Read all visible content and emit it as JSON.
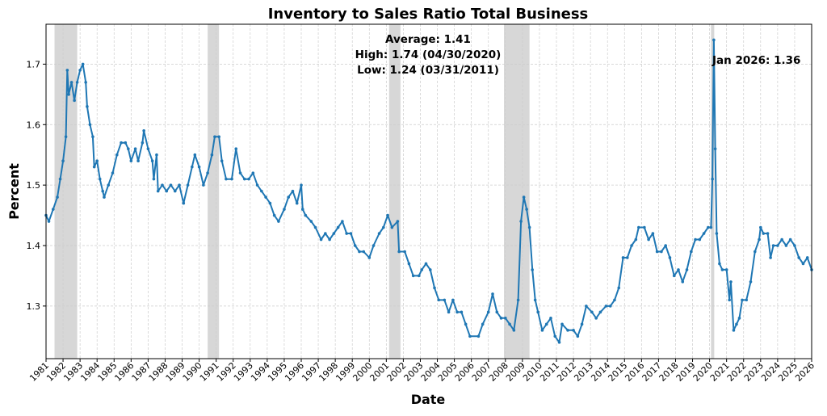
{
  "chart_data": {
    "type": "line",
    "title": "Inventory to Sales Ratio Total Business",
    "xlabel": "Date",
    "ylabel": "Percent",
    "xlim": [
      "1981-01",
      "2026-01"
    ],
    "ylim": [
      1.213,
      1.766
    ],
    "x_ticks": [
      "1981",
      "1982",
      "1983",
      "1984",
      "1985",
      "1986",
      "1987",
      "1988",
      "1989",
      "1990",
      "1991",
      "1992",
      "1993",
      "1994",
      "1995",
      "1996",
      "1997",
      "1998",
      "1999",
      "2000",
      "2001",
      "2002",
      "2003",
      "2004",
      "2005",
      "2006",
      "2007",
      "2008",
      "2009",
      "2010",
      "2011",
      "2012",
      "2013",
      "2014",
      "2015",
      "2016",
      "2017",
      "2018",
      "2019",
      "2020",
      "2021",
      "2022",
      "2023",
      "2024",
      "2025",
      "2026"
    ],
    "y_ticks": [
      "1.3",
      "1.4",
      "1.5",
      "1.6",
      "1.7"
    ],
    "grid": true,
    "line_color": "#1f77b4",
    "recession_color": "#b0b0b0",
    "recessions": [
      [
        "1981-07",
        "1982-11"
      ],
      [
        "1990-07",
        "1991-03"
      ],
      [
        "2001-03",
        "2001-11"
      ],
      [
        "2007-12",
        "2009-06"
      ],
      [
        "2020-02",
        "2020-04"
      ]
    ],
    "annotations": {
      "average": "Average: 1.41",
      "high": "High: 1.74 (04/30/2020)",
      "low": "Low: 1.24 (03/31/2011)",
      "latest": "Jan 2026: 1.36"
    },
    "series": [
      {
        "x": [
          "1981-01",
          "1981-03",
          "1981-06",
          "1981-09",
          "1981-11",
          "1982-01",
          "1982-03",
          "1982-04",
          "1982-05",
          "1982-07",
          "1982-09",
          "1982-11",
          "1983-01",
          "1983-03",
          "1983-05",
          "1983-06",
          "1983-08",
          "1983-10",
          "1983-11",
          "1984-01",
          "1984-03",
          "1984-05",
          "1984-06",
          "1984-09",
          "1984-12",
          "1985-03",
          "1985-06",
          "1985-09",
          "1985-11",
          "1986-01",
          "1986-04",
          "1986-06",
          "1986-09",
          "1986-10",
          "1987-01",
          "1987-04",
          "1987-05",
          "1987-07",
          "1987-08",
          "1987-11",
          "1988-02",
          "1988-05",
          "1988-08",
          "1988-11",
          "1989-02",
          "1989-05",
          "1989-08",
          "1989-10",
          "1990-01",
          "1990-04",
          "1990-07",
          "1990-10",
          "1990-12",
          "1991-03",
          "1991-05",
          "1991-08",
          "1991-12",
          "1992-03",
          "1992-06",
          "1992-09",
          "1992-12",
          "1993-03",
          "1993-06",
          "1993-09",
          "1993-12",
          "1994-03",
          "1994-06",
          "1994-09",
          "1995-01",
          "1995-04",
          "1995-07",
          "1995-10",
          "1996-01",
          "1996-02",
          "1996-04",
          "1996-08",
          "1996-11",
          "1997-03",
          "1997-06",
          "1997-09",
          "1997-12",
          "1998-03",
          "1998-06",
          "1998-09",
          "1998-12",
          "1999-03",
          "1999-06",
          "1999-09",
          "2000-01",
          "2000-04",
          "2000-08",
          "2000-11",
          "2001-02",
          "2001-05",
          "2001-09",
          "2001-10",
          "2002-02",
          "2002-05",
          "2002-08",
          "2002-12",
          "2003-02",
          "2003-05",
          "2003-08",
          "2003-11",
          "2004-02",
          "2004-06",
          "2004-09",
          "2004-12",
          "2005-03",
          "2005-06",
          "2005-09",
          "2005-12",
          "2006-06",
          "2006-09",
          "2007-01",
          "2007-04",
          "2007-07",
          "2007-10",
          "2008-01",
          "2008-04",
          "2008-07",
          "2008-10",
          "2008-12",
          "2009-02",
          "2009-04",
          "2009-06",
          "2009-08",
          "2009-10",
          "2009-12",
          "2010-03",
          "2010-06",
          "2010-09",
          "2010-12",
          "2011-03",
          "2011-05",
          "2011-09",
          "2012-01",
          "2012-04",
          "2012-07",
          "2012-10",
          "2013-02",
          "2013-05",
          "2013-08",
          "2013-12",
          "2014-03",
          "2014-06",
          "2014-09",
          "2014-12",
          "2015-03",
          "2015-06",
          "2015-09",
          "2015-11",
          "2016-03",
          "2016-06",
          "2016-09",
          "2016-12",
          "2017-03",
          "2017-06",
          "2017-09",
          "2017-12",
          "2018-03",
          "2018-06",
          "2018-09",
          "2018-12",
          "2019-03",
          "2019-06",
          "2019-09",
          "2019-12",
          "2020-02",
          "2020-03",
          "2020-04",
          "2020-05",
          "2020-06",
          "2020-08",
          "2020-10",
          "2021-01",
          "2021-03",
          "2021-04",
          "2021-06",
          "2021-08",
          "2021-10",
          "2021-12",
          "2022-03",
          "2022-06",
          "2022-09",
          "2022-12",
          "2023-01",
          "2023-03",
          "2023-06",
          "2023-08",
          "2023-10",
          "2024-01",
          "2024-04",
          "2024-07",
          "2024-10",
          "2025-01",
          "2025-04",
          "2025-07",
          "2025-10",
          "2026-01"
        ],
        "y": [
          1.45,
          1.44,
          1.46,
          1.48,
          1.51,
          1.54,
          1.58,
          1.69,
          1.65,
          1.67,
          1.64,
          1.67,
          1.69,
          1.7,
          1.67,
          1.63,
          1.6,
          1.58,
          1.53,
          1.54,
          1.51,
          1.49,
          1.48,
          1.5,
          1.52,
          1.55,
          1.57,
          1.57,
          1.56,
          1.54,
          1.56,
          1.54,
          1.57,
          1.59,
          1.56,
          1.54,
          1.51,
          1.55,
          1.49,
          1.5,
          1.49,
          1.5,
          1.49,
          1.5,
          1.47,
          1.5,
          1.53,
          1.55,
          1.53,
          1.5,
          1.52,
          1.55,
          1.58,
          1.58,
          1.54,
          1.51,
          1.51,
          1.56,
          1.52,
          1.51,
          1.51,
          1.52,
          1.5,
          1.49,
          1.48,
          1.47,
          1.45,
          1.44,
          1.46,
          1.48,
          1.49,
          1.47,
          1.5,
          1.46,
          1.45,
          1.44,
          1.43,
          1.41,
          1.42,
          1.41,
          1.42,
          1.43,
          1.44,
          1.42,
          1.42,
          1.4,
          1.39,
          1.39,
          1.38,
          1.4,
          1.42,
          1.43,
          1.45,
          1.43,
          1.44,
          1.39,
          1.39,
          1.37,
          1.35,
          1.35,
          1.36,
          1.37,
          1.36,
          1.33,
          1.31,
          1.31,
          1.29,
          1.31,
          1.29,
          1.29,
          1.27,
          1.25,
          1.25,
          1.27,
          1.29,
          1.32,
          1.29,
          1.28,
          1.28,
          1.27,
          1.26,
          1.31,
          1.44,
          1.48,
          1.46,
          1.43,
          1.36,
          1.31,
          1.29,
          1.26,
          1.27,
          1.28,
          1.25,
          1.24,
          1.27,
          1.26,
          1.26,
          1.25,
          1.27,
          1.3,
          1.29,
          1.28,
          1.29,
          1.3,
          1.3,
          1.31,
          1.33,
          1.38,
          1.38,
          1.4,
          1.41,
          1.43,
          1.43,
          1.41,
          1.42,
          1.39,
          1.39,
          1.4,
          1.38,
          1.35,
          1.36,
          1.34,
          1.36,
          1.39,
          1.41,
          1.41,
          1.42,
          1.43,
          1.43,
          1.51,
          1.74,
          1.56,
          1.42,
          1.37,
          1.36,
          1.36,
          1.31,
          1.34,
          1.26,
          1.27,
          1.28,
          1.31,
          1.31,
          1.34,
          1.39,
          1.41,
          1.43,
          1.42,
          1.42,
          1.38,
          1.4,
          1.4,
          1.41,
          1.4,
          1.41,
          1.4,
          1.38,
          1.37,
          1.38,
          1.36
        ]
      }
    ]
  }
}
